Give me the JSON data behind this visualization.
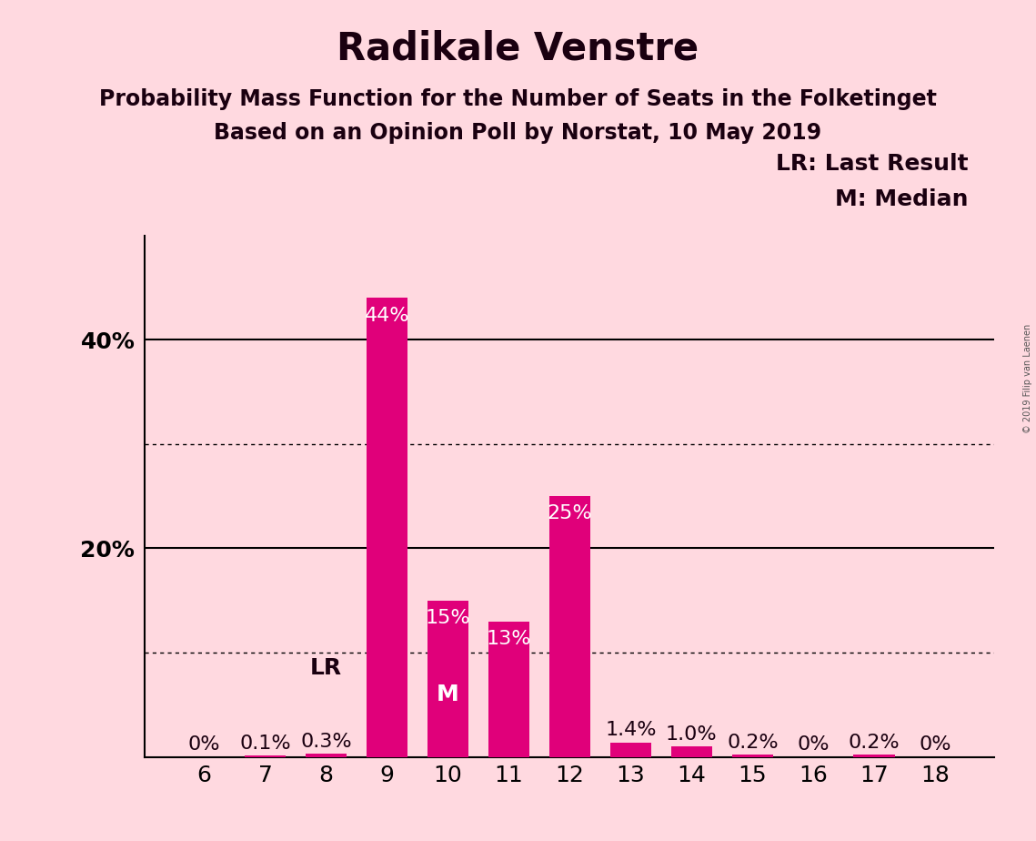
{
  "title": "Radikale Venstre",
  "subtitle1": "Probability Mass Function for the Number of Seats in the Folketinget",
  "subtitle2": "Based on an Opinion Poll by Norstat, 10 May 2019",
  "watermark": "© 2019 Filip van Laenen",
  "categories": [
    6,
    7,
    8,
    9,
    10,
    11,
    12,
    13,
    14,
    15,
    16,
    17,
    18
  ],
  "values": [
    0.0,
    0.1,
    0.3,
    44.0,
    15.0,
    13.0,
    25.0,
    1.4,
    1.0,
    0.2,
    0.0,
    0.2,
    0.0
  ],
  "labels": [
    "0%",
    "0.1%",
    "0.3%",
    "44%",
    "15%",
    "13%",
    "25%",
    "1.4%",
    "1.0%",
    "0.2%",
    "0%",
    "0.2%",
    "0%"
  ],
  "bar_color": "#E0007A",
  "background_color": "#FFD9E0",
  "last_result_seat": 8,
  "median_seat": 10,
  "ylim": [
    0,
    50
  ],
  "yticks": [
    20,
    40
  ],
  "ytick_labels": [
    "20%",
    "40%"
  ],
  "solid_yticks": [
    20,
    40
  ],
  "dotted_yticks": [
    10,
    30
  ],
  "legend_text1": "LR: Last Result",
  "legend_text2": "M: Median",
  "label_inside_color": "#FFFFFF",
  "label_outside_color": "#1a0010",
  "label_inside_threshold": 5.0,
  "title_fontsize": 30,
  "subtitle_fontsize": 17,
  "tick_fontsize": 18,
  "bar_label_fontsize": 16,
  "legend_fontsize": 18,
  "marker_fontsize": 18,
  "lr_marker_color": "#1a0010",
  "m_marker_color": "#FFFFFF"
}
